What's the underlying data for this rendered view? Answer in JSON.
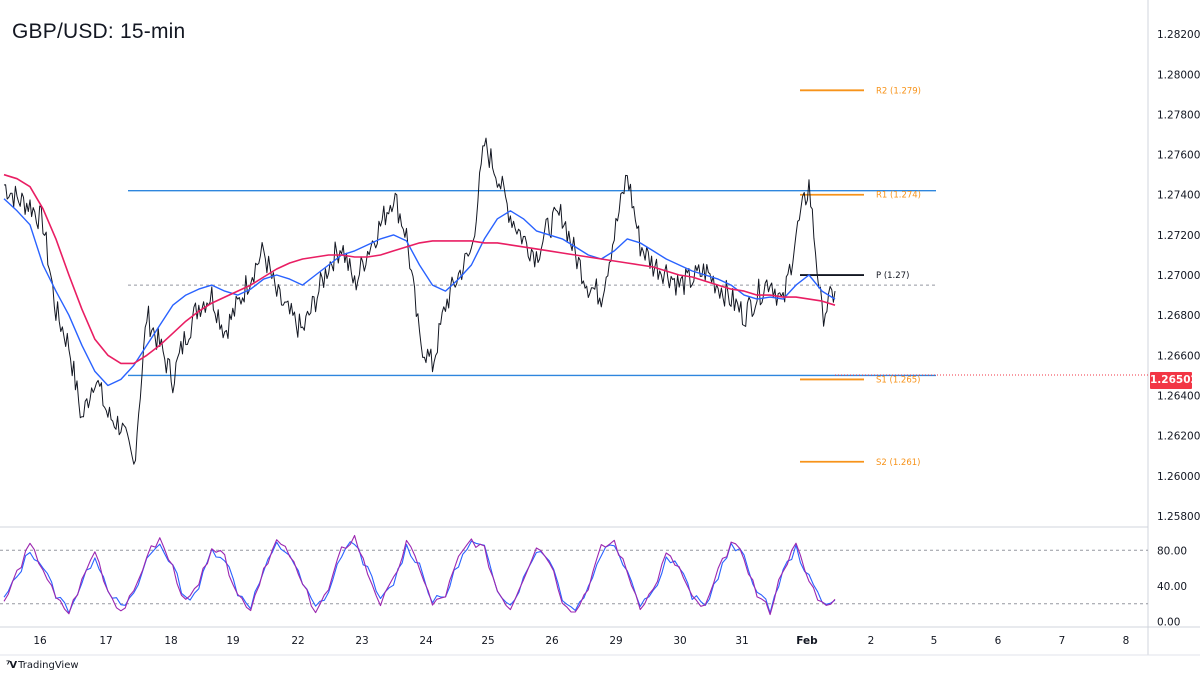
{
  "header": {
    "title": "GBP/USD: 15-min"
  },
  "footer": {
    "brand": "TradingView",
    "brand_icon": "tradingview-logo-icon"
  },
  "current_price": {
    "label": "1.26502",
    "value": 1.26502,
    "color": "#f23645"
  },
  "chart_data": [
    {
      "type": "line",
      "panel": "price",
      "title": "GBP/USD: 15-min",
      "ylim": [
        1.2575,
        1.2835
      ],
      "yticks": [
        "1.25800",
        "1.26000",
        "1.26200",
        "1.26400",
        "1.26600",
        "1.26800",
        "1.27000",
        "1.27200",
        "1.27400",
        "1.27600",
        "1.27800",
        "1.28000",
        "1.28200"
      ],
      "xticks": [
        "16",
        "17",
        "18",
        "19",
        "22",
        "23",
        "24",
        "25",
        "26",
        "29",
        "30",
        "31",
        "Feb",
        "2",
        "5",
        "6",
        "7",
        "8"
      ],
      "x": [
        0,
        2,
        4,
        6,
        8,
        10,
        12,
        14,
        16,
        18,
        20,
        22,
        24,
        26,
        28,
        30,
        32,
        34,
        36,
        38,
        40,
        42,
        44,
        46,
        48,
        50,
        52,
        54,
        56,
        58,
        60,
        62,
        64,
        66,
        68,
        70,
        72,
        74,
        76,
        78,
        80,
        82,
        84,
        86,
        88,
        90,
        92,
        94,
        96,
        98,
        100,
        102,
        104,
        106,
        108,
        110,
        112,
        114,
        116,
        118,
        120,
        122,
        124,
        126,
        128
      ],
      "series": [
        {
          "color": "#131722",
          "values": [
            1.2745,
            1.2738,
            1.2735,
            1.2726,
            1.2682,
            1.2665,
            1.2628,
            1.265,
            1.263,
            1.2625,
            1.2605,
            1.268,
            1.2665,
            1.2648,
            1.267,
            1.2685,
            1.269,
            1.2672,
            1.2685,
            1.27,
            1.2712,
            1.269,
            1.268,
            1.2672,
            1.2688,
            1.2705,
            1.2715,
            1.2695,
            1.2712,
            1.2725,
            1.274,
            1.272,
            1.2668,
            1.2655,
            1.2685,
            1.27,
            1.2712,
            1.2765,
            1.275,
            1.273,
            1.2718,
            1.271,
            1.2725,
            1.273,
            1.271,
            1.2695,
            1.269,
            1.272,
            1.275,
            1.2715,
            1.2705,
            1.2702,
            1.2695,
            1.2698,
            1.2702,
            1.2695,
            1.2688,
            1.268,
            1.269,
            1.2698,
            1.2685,
            1.272,
            1.2745,
            1.268,
            1.2692
          ]
        },
        {
          "color": "#2962ff",
          "values": [
            1.2738,
            1.2732,
            1.2725,
            1.2705,
            1.2692,
            1.268,
            1.2665,
            1.2652,
            1.2645,
            1.2648,
            1.2655,
            1.2665,
            1.2675,
            1.2685,
            1.269,
            1.2693,
            1.2695,
            1.2692,
            1.269,
            1.2693,
            1.2698,
            1.27,
            1.2698,
            1.2695,
            1.27,
            1.2705,
            1.271,
            1.2712,
            1.2715,
            1.2718,
            1.272,
            1.2717,
            1.2705,
            1.2695,
            1.2692,
            1.2698,
            1.2705,
            1.2718,
            1.2728,
            1.2732,
            1.2728,
            1.2722,
            1.272,
            1.2718,
            1.2714,
            1.271,
            1.2708,
            1.2712,
            1.2718,
            1.2716,
            1.2712,
            1.2708,
            1.2705,
            1.2702,
            1.27,
            1.2698,
            1.2695,
            1.269,
            1.2688,
            1.2689,
            1.2688,
            1.2695,
            1.27,
            1.2692,
            1.2688
          ]
        },
        {
          "color": "#e91e63",
          "values": [
            1.275,
            1.2748,
            1.2744,
            1.2733,
            1.2718,
            1.27,
            1.2683,
            1.2668,
            1.266,
            1.2656,
            1.2656,
            1.266,
            1.2665,
            1.2671,
            1.2677,
            1.2682,
            1.2686,
            1.2689,
            1.2692,
            1.2695,
            1.2699,
            1.2703,
            1.2706,
            1.2708,
            1.2709,
            1.271,
            1.271,
            1.2709,
            1.2709,
            1.271,
            1.2712,
            1.2714,
            1.2716,
            1.2717,
            1.2717,
            1.2717,
            1.2717,
            1.2716,
            1.2716,
            1.2715,
            1.2714,
            1.2713,
            1.2712,
            1.2711,
            1.271,
            1.2709,
            1.2708,
            1.2707,
            1.2706,
            1.2705,
            1.2704,
            1.2702,
            1.27,
            1.2699,
            1.2697,
            1.2695,
            1.2693,
            1.2692,
            1.269,
            1.269,
            1.2689,
            1.2689,
            1.2688,
            1.2687,
            1.2685
          ]
        }
      ],
      "range_lines": [
        {
          "value": 1.2742,
          "color": "#2e86de"
        },
        {
          "value": 1.265,
          "color": "#2e86de"
        }
      ],
      "pivot_dashed_line": 1.2695,
      "pivot_levels": [
        {
          "label": "R2 (1.279)",
          "value": 1.2792,
          "color": "#f7931a"
        },
        {
          "label": "R1 (1.274)",
          "value": 1.274,
          "color": "#f7931a"
        },
        {
          "label": "P (1.27)",
          "value": 1.27,
          "color": "#131722"
        },
        {
          "label": "S1 (1.265)",
          "value": 1.2648,
          "color": "#f7931a"
        },
        {
          "label": "S2 (1.261)",
          "value": 1.2607,
          "color": "#f7931a"
        }
      ]
    },
    {
      "type": "line",
      "panel": "oscillator",
      "ylim": [
        -5,
        105
      ],
      "yticks": [
        "0.00",
        "40.00",
        "80.00"
      ],
      "levels": [
        80,
        20
      ],
      "x": [
        0,
        2,
        4,
        6,
        8,
        10,
        12,
        14,
        16,
        18,
        20,
        22,
        24,
        26,
        28,
        30,
        32,
        34,
        36,
        38,
        40,
        42,
        44,
        46,
        48,
        50,
        52,
        54,
        56,
        58,
        60,
        62,
        64,
        66,
        68,
        70,
        72,
        74,
        76,
        78,
        80,
        82,
        84,
        86,
        88,
        90,
        92,
        94,
        96,
        98,
        100,
        102,
        104,
        106,
        108,
        110,
        112,
        114,
        116,
        118,
        120,
        122,
        124,
        126,
        128
      ],
      "series": [
        {
          "color": "#9c27b0",
          "values": [
            20,
            55,
            85,
            60,
            25,
            10,
            45,
            80,
            35,
            12,
            30,
            75,
            92,
            60,
            20,
            40,
            85,
            70,
            30,
            15,
            60,
            90,
            75,
            40,
            12,
            35,
            80,
            95,
            55,
            20,
            45,
            88,
            62,
            18,
            30,
            70,
            92,
            80,
            35,
            15,
            50,
            85,
            70,
            25,
            10,
            40,
            82,
            90,
            55,
            18,
            35,
            75,
            60,
            25,
            15,
            55,
            88,
            72,
            30,
            12,
            60,
            85,
            45,
            20,
            25
          ]
        },
        {
          "color": "#2962ff",
          "values": [
            25,
            50,
            80,
            62,
            30,
            14,
            42,
            75,
            38,
            15,
            28,
            70,
            88,
            62,
            24,
            38,
            80,
            72,
            33,
            18,
            56,
            86,
            76,
            42,
            15,
            33,
            76,
            90,
            58,
            23,
            43,
            84,
            64,
            22,
            29,
            66,
            88,
            81,
            38,
            18,
            47,
            81,
            72,
            28,
            13,
            38,
            78,
            88,
            58,
            21,
            33,
            71,
            62,
            28,
            17,
            52,
            84,
            74,
            33,
            14,
            56,
            82,
            48,
            23,
            24
          ]
        }
      ]
    }
  ]
}
